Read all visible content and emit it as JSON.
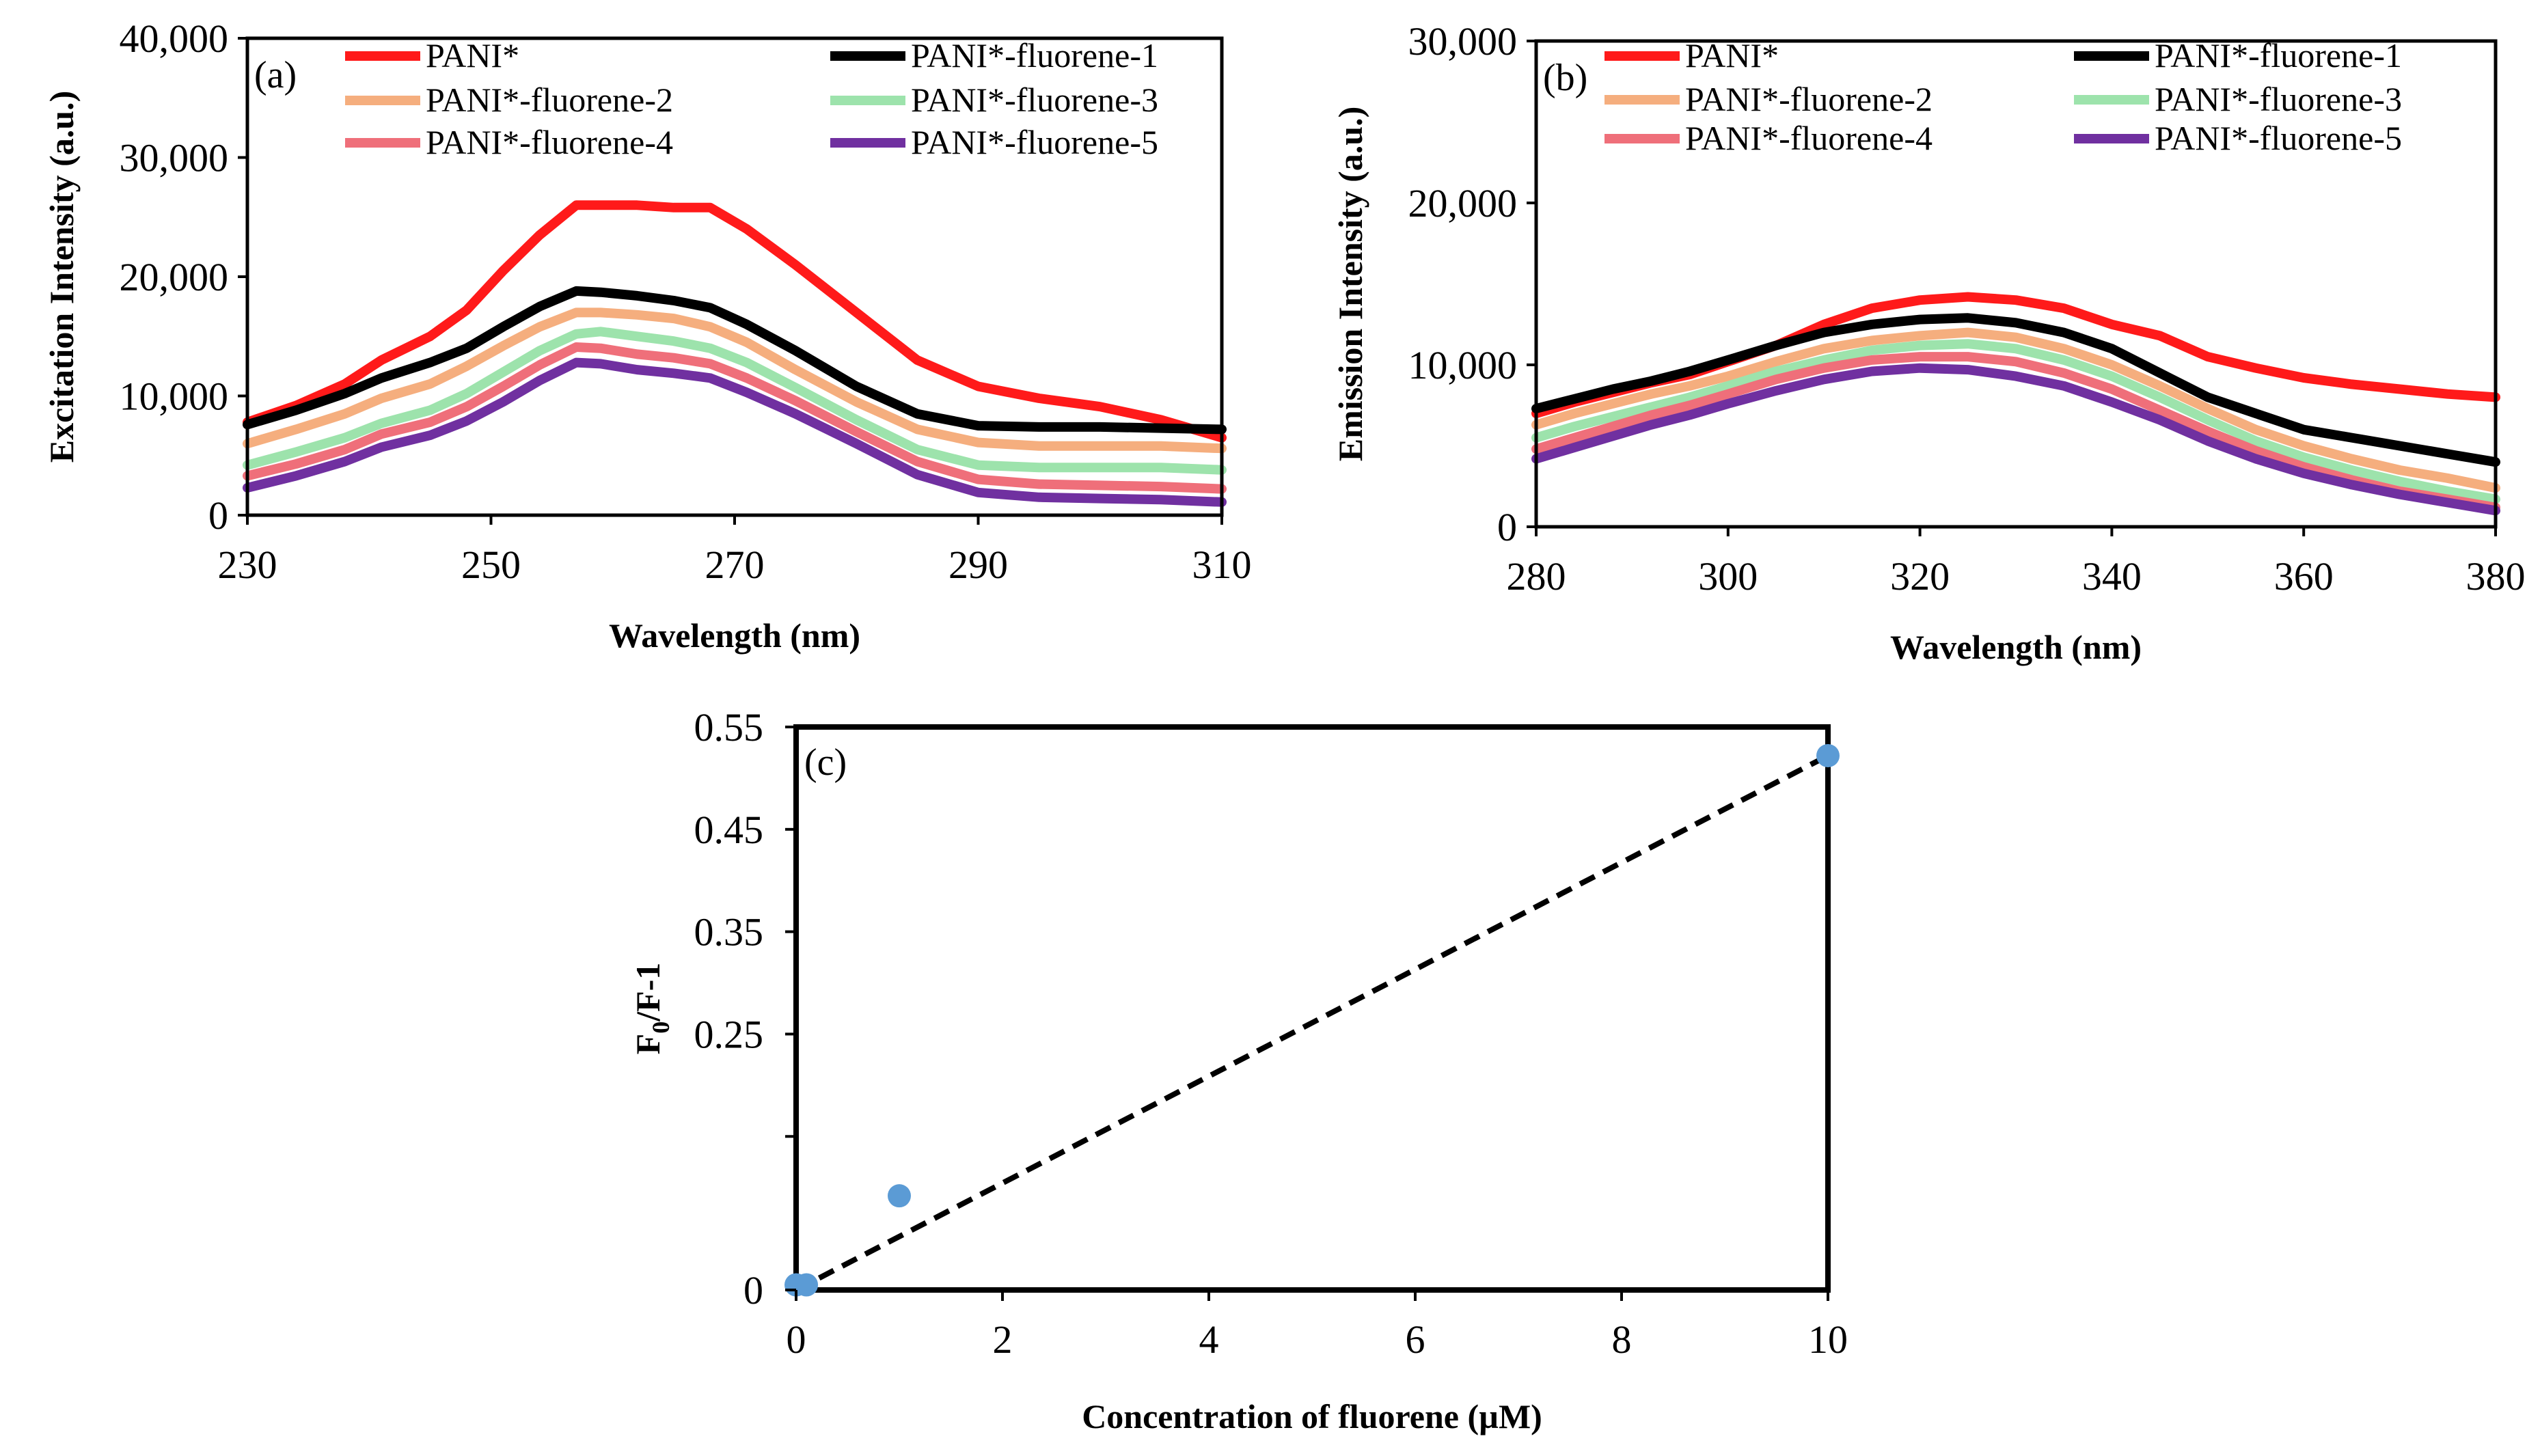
{
  "chart_data": [
    {
      "type": "line",
      "panel_label": "(a)",
      "xlabel": "Wavelength (nm)",
      "ylabel": "Excitation  Intensity  (a.u.)",
      "xlim": [
        230,
        310
      ],
      "ylim": [
        0,
        40000
      ],
      "x_ticks": [
        230,
        250,
        270,
        290,
        310
      ],
      "x_tick_labels": [
        "230",
        "250",
        "270",
        "290",
        "310"
      ],
      "y_ticks": [
        0,
        10000,
        20000,
        30000,
        40000
      ],
      "y_tick_labels": [
        "0",
        "10,000",
        "20,000",
        "30,000",
        "40,000"
      ],
      "legend_position": "top",
      "x": [
        230,
        234,
        238,
        241,
        245,
        248,
        251,
        254,
        257,
        259,
        262,
        265,
        268,
        271,
        275,
        280,
        285,
        290,
        295,
        300,
        305,
        310
      ],
      "series": [
        {
          "name": "PANI*",
          "color": "#ff1a1a",
          "values": [
            7800,
            9200,
            11000,
            13000,
            15000,
            17200,
            20500,
            23500,
            26000,
            26000,
            26000,
            25800,
            25800,
            24000,
            21000,
            17000,
            13000,
            10800,
            9800,
            9100,
            8000,
            6500
          ]
        },
        {
          "name": "PANI*-fluorene-1",
          "color": "#000000",
          "values": [
            7600,
            8800,
            10200,
            11500,
            12800,
            14000,
            15800,
            17500,
            18800,
            18700,
            18400,
            18000,
            17400,
            16000,
            13800,
            10800,
            8500,
            7500,
            7400,
            7400,
            7300,
            7200
          ]
        },
        {
          "name": "PANI*-fluorene-2",
          "color": "#f5ae7e",
          "values": [
            6000,
            7200,
            8500,
            9800,
            11000,
            12500,
            14200,
            15800,
            17000,
            17000,
            16800,
            16500,
            15800,
            14500,
            12200,
            9500,
            7200,
            6100,
            5800,
            5800,
            5800,
            5600
          ]
        },
        {
          "name": "PANI*-fluorene-3",
          "color": "#9de3ac",
          "values": [
            4200,
            5300,
            6500,
            7700,
            8800,
            10200,
            12000,
            13800,
            15200,
            15400,
            15000,
            14600,
            14000,
            12800,
            10700,
            8000,
            5500,
            4200,
            4000,
            4000,
            4000,
            3800
          ]
        },
        {
          "name": "PANI*-fluorene-4",
          "color": "#ef6f7a",
          "values": [
            3300,
            4300,
            5500,
            6800,
            7800,
            9100,
            10800,
            12600,
            14100,
            14000,
            13500,
            13200,
            12700,
            11500,
            9600,
            7000,
            4500,
            3000,
            2600,
            2500,
            2400,
            2200
          ]
        },
        {
          "name": "PANI*-fluorene-5",
          "color": "#7030a0",
          "values": [
            2300,
            3300,
            4500,
            5700,
            6700,
            7900,
            9500,
            11300,
            12800,
            12700,
            12200,
            11900,
            11500,
            10300,
            8500,
            6000,
            3400,
            1900,
            1500,
            1400,
            1300,
            1100
          ]
        }
      ]
    },
    {
      "type": "line",
      "panel_label": "(b)",
      "xlabel": "Wavelength (nm)",
      "ylabel": "Emission Intensity (a.u.)",
      "xlim": [
        280,
        380
      ],
      "ylim": [
        0,
        30000
      ],
      "x_ticks": [
        280,
        300,
        320,
        340,
        360,
        380
      ],
      "x_tick_labels": [
        "280",
        "300",
        "320",
        "340",
        "360",
        "380"
      ],
      "y_ticks": [
        0,
        10000,
        20000,
        30000
      ],
      "y_tick_labels": [
        "0",
        "10,000",
        "20,000",
        "30,000"
      ],
      "legend_position": "top",
      "x": [
        280,
        284,
        288,
        292,
        296,
        300,
        305,
        310,
        315,
        320,
        325,
        330,
        335,
        340,
        345,
        350,
        355,
        360,
        365,
        370,
        375,
        380
      ],
      "series": [
        {
          "name": "PANI*",
          "color": "#ff1a1a",
          "values": [
            7000,
            7700,
            8300,
            8900,
            9400,
            10200,
            11200,
            12500,
            13500,
            14000,
            14200,
            14000,
            13500,
            12500,
            11800,
            10500,
            9800,
            9200,
            8800,
            8500,
            8200,
            8000
          ]
        },
        {
          "name": "PANI*-fluorene-1",
          "color": "#000000",
          "values": [
            7300,
            7900,
            8500,
            9000,
            9600,
            10300,
            11200,
            12000,
            12500,
            12800,
            12900,
            12600,
            12000,
            11000,
            9500,
            8000,
            7000,
            6000,
            5500,
            5000,
            4500,
            4000
          ]
        },
        {
          "name": "PANI*-fluorene-2",
          "color": "#f5ae7e",
          "values": [
            6300,
            7000,
            7600,
            8200,
            8700,
            9300,
            10200,
            11000,
            11500,
            11800,
            12000,
            11700,
            11000,
            10000,
            8700,
            7300,
            6000,
            5000,
            4200,
            3500,
            3000,
            2400
          ]
        },
        {
          "name": "PANI*-fluorene-3",
          "color": "#9de3ac",
          "values": [
            5500,
            6200,
            6800,
            7400,
            8000,
            8700,
            9600,
            10300,
            10900,
            11200,
            11300,
            11000,
            10300,
            9300,
            8000,
            6600,
            5300,
            4300,
            3500,
            2800,
            2200,
            1700
          ]
        },
        {
          "name": "PANI*-fluorene-4",
          "color": "#ef6f7a",
          "values": [
            4800,
            5500,
            6200,
            6900,
            7500,
            8200,
            9100,
            9800,
            10300,
            10500,
            10500,
            10200,
            9500,
            8500,
            7200,
            5900,
            4700,
            3700,
            2900,
            2200,
            1700,
            1200
          ]
        },
        {
          "name": "PANI*-fluorene-5",
          "color": "#7030a0",
          "values": [
            4200,
            4900,
            5600,
            6300,
            6900,
            7600,
            8400,
            9100,
            9600,
            9800,
            9700,
            9300,
            8700,
            7700,
            6600,
            5300,
            4200,
            3300,
            2600,
            2000,
            1500,
            1000
          ]
        }
      ]
    },
    {
      "type": "scatter",
      "panel_label": "(c)",
      "xlabel": "Concentration  of fluorene (µM)",
      "ylabel_main": "F",
      "ylabel_sub": "0",
      "ylabel_rest": "/F-1",
      "xlim": [
        0,
        10
      ],
      "ylim": [
        0,
        0.55
      ],
      "x_ticks": [
        0,
        2,
        4,
        6,
        8,
        10
      ],
      "x_tick_labels": [
        "0",
        "2",
        "4",
        "6",
        "8",
        "10"
      ],
      "y_ticks": [
        0,
        0.15,
        0.25,
        0.35,
        0.45,
        0.55
      ],
      "y_tick_labels": [
        "0",
        "",
        "0.25",
        "0.35",
        "0.45",
        "0.55"
      ],
      "points": {
        "color": "#5b9bd5",
        "x": [
          0,
          0.1,
          1,
          10
        ],
        "y": [
          0.005,
          0.005,
          0.092,
          0.522
        ]
      },
      "fit_line": {
        "style": "dashed",
        "color": "#000000",
        "x": [
          0,
          10
        ],
        "y": [
          0.0,
          0.522
        ]
      }
    }
  ]
}
